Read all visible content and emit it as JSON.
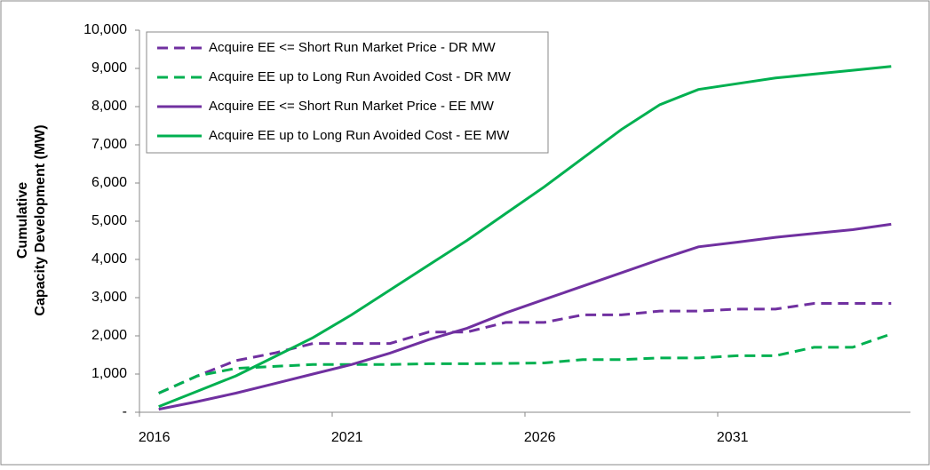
{
  "chart_data": {
    "type": "line",
    "ylabel": [
      "Cumulative",
      "Capacity Development (MW)"
    ],
    "x": [
      2016,
      2017,
      2018,
      2019,
      2020,
      2021,
      2022,
      2023,
      2024,
      2025,
      2026,
      2027,
      2028,
      2029,
      2030,
      2031,
      2032,
      2033,
      2034,
      2035
    ],
    "xlim": [
      2015.5,
      2035.5
    ],
    "xticks": [
      2016,
      2021,
      2026,
      2031
    ],
    "ylim": [
      0,
      10000
    ],
    "yticks": [
      {
        "value": 0,
        "label": "-"
      },
      {
        "value": 1000,
        "label": "1,000"
      },
      {
        "value": 2000,
        "label": "2,000"
      },
      {
        "value": 3000,
        "label": "3,000"
      },
      {
        "value": 4000,
        "label": "4,000"
      },
      {
        "value": 5000,
        "label": "5,000"
      },
      {
        "value": 6000,
        "label": "6,000"
      },
      {
        "value": 7000,
        "label": "7,000"
      },
      {
        "value": 8000,
        "label": "8,000"
      },
      {
        "value": 9000,
        "label": "9,000"
      },
      {
        "value": 10000,
        "label": "10,000"
      }
    ],
    "legend": "upper left",
    "series": [
      {
        "name": "Acquire EE <= Short Run Market Price - DR MW",
        "color": "#7030a0",
        "dash": true,
        "values": [
          500,
          950,
          1350,
          1550,
          1800,
          1800,
          1800,
          2100,
          2100,
          2350,
          2350,
          2550,
          2550,
          2650,
          2650,
          2700,
          2700,
          2850,
          2850,
          2850
        ]
      },
      {
        "name": "Acquire EE up to Long Run Avoided Cost - DR MW",
        "color": "#00b050",
        "dash": true,
        "values": [
          500,
          950,
          1150,
          1200,
          1250,
          1250,
          1250,
          1270,
          1270,
          1280,
          1290,
          1380,
          1380,
          1420,
          1420,
          1480,
          1480,
          1700,
          1700,
          2050
        ]
      },
      {
        "name": "Acquire EE <= Short Run Market Price - EE MW",
        "color": "#7030a0",
        "dash": false,
        "values": [
          80,
          280,
          500,
          750,
          1000,
          1250,
          1550,
          1900,
          2200,
          2600,
          2950,
          3300,
          3650,
          4000,
          4330,
          4450,
          4580,
          4680,
          4780,
          4920
        ]
      },
      {
        "name": "Acquire EE up to Long Run Avoided Cost - EE MW",
        "color": "#00b050",
        "dash": false,
        "values": [
          150,
          550,
          950,
          1450,
          1950,
          2550,
          3200,
          3850,
          4500,
          5200,
          5900,
          6650,
          7400,
          8050,
          8450,
          8600,
          8750,
          8850,
          8950,
          9050
        ]
      }
    ]
  }
}
